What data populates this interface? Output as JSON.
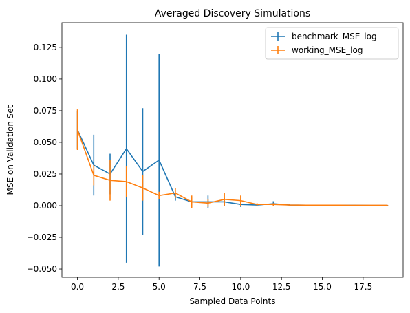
{
  "chart_data": {
    "type": "line",
    "title": "Averaged Discovery Simulations",
    "xlabel": "Sampled Data Points",
    "ylabel": "MSE on Validation Set",
    "xlim": [
      -0.95,
      19.95
    ],
    "ylim": [
      -0.0565,
      0.1445
    ],
    "xticks": [
      0.0,
      2.5,
      5.0,
      7.5,
      10.0,
      12.5,
      15.0,
      17.5
    ],
    "xtick_labels": [
      "0.0",
      "2.5",
      "5.0",
      "7.5",
      "10.0",
      "12.5",
      "15.0",
      "17.5"
    ],
    "yticks": [
      -0.05,
      -0.025,
      0.0,
      0.025,
      0.05,
      0.075,
      0.1,
      0.125
    ],
    "ytick_labels": [
      "−0.050",
      "−0.025",
      "0.000",
      "0.025",
      "0.050",
      "0.075",
      "0.100",
      "0.125"
    ],
    "grid": false,
    "legend_position": "top-right",
    "x": [
      0,
      1,
      2,
      3,
      4,
      5,
      6,
      7,
      8,
      9,
      10,
      11,
      12,
      13,
      14,
      15,
      16,
      17,
      18,
      19
    ],
    "series": [
      {
        "name": "benchmark_MSE_log",
        "color": "#1f77b4",
        "values": [
          0.06,
          0.032,
          0.025,
          0.045,
          0.027,
          0.036,
          0.007,
          0.003,
          0.003,
          0.003,
          0.001,
          0.0005,
          0.0015,
          0.0005,
          0.0004,
          0.0004,
          0.0003,
          0.0003,
          0.0002,
          0.0002
        ],
        "errors": [
          0.015,
          0.024,
          0.016,
          0.09,
          0.05,
          0.084,
          0.003,
          0.004,
          0.005,
          0.003,
          0.002,
          0.001,
          0.002,
          0.0005,
          0.0003,
          0.0003,
          0.0003,
          0.0003,
          0.0002,
          0.0002
        ]
      },
      {
        "name": "working_MSE_log",
        "color": "#ff7f0e",
        "values": [
          0.06,
          0.024,
          0.02,
          0.019,
          0.014,
          0.008,
          0.01,
          0.003,
          0.002,
          0.005,
          0.004,
          0.001,
          0.001,
          0.0005,
          0.0004,
          0.0004,
          0.0004,
          0.0003,
          0.0003,
          0.0003
        ],
        "errors": [
          0.016,
          0.008,
          0.016,
          0.012,
          0.01,
          0.003,
          0.004,
          0.005,
          0.003,
          0.005,
          0.004,
          0.001,
          0.001,
          0.0005,
          0.0003,
          0.0003,
          0.0003,
          0.0003,
          0.0002,
          0.0002
        ]
      }
    ]
  }
}
